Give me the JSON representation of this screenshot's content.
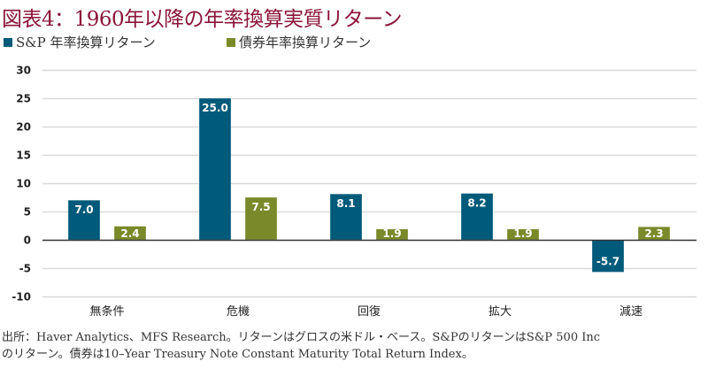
{
  "colors": {
    "title": "#8a1538",
    "sp": "#005a7a",
    "bond": "#7a8a2a",
    "grid": "#d9d9d9",
    "zero": "#333333"
  },
  "title": "図表4：1960年以降の年率換算実質リターン",
  "footnote": {
    "line1": "出所：Haver Analytics、MFS Research。リターンはグロスの米ドル・ベース。S&PのリターンはS&P 500 Inc",
    "line2": "のリターン。債券は10–Year Treasury Note Constant Maturity Total Return Index。"
  },
  "chart_data": {
    "type": "bar",
    "title": "図表4：1960年以降の年率換算実質リターン",
    "xlabel": "",
    "ylabel": "",
    "categories": [
      "無条件",
      "危機",
      "回復",
      "拡大",
      "減速"
    ],
    "series": [
      {
        "name": "S&P 年率換算リターン",
        "color": "#005a7a",
        "values": [
          7.0,
          25.0,
          8.1,
          8.2,
          -5.7
        ],
        "labels": [
          "7.0",
          "25.0",
          "8.1",
          "8.2",
          "-5.7"
        ]
      },
      {
        "name": "債券年率換算リターン",
        "color": "#7a8a2a",
        "values": [
          2.4,
          7.5,
          1.9,
          1.9,
          2.3
        ],
        "labels": [
          "2.4",
          "7.5",
          "1.9",
          "1.9",
          "2.3"
        ]
      }
    ],
    "ylim": [
      -10,
      30
    ],
    "yticks": [
      30,
      25,
      20,
      15,
      10,
      5,
      0,
      -5,
      -10
    ],
    "ytick_labels": [
      "30",
      "25",
      "20",
      "15",
      "10",
      "5",
      "0",
      "-5",
      "-10"
    ],
    "grid": true,
    "legend_position": "top-left"
  }
}
